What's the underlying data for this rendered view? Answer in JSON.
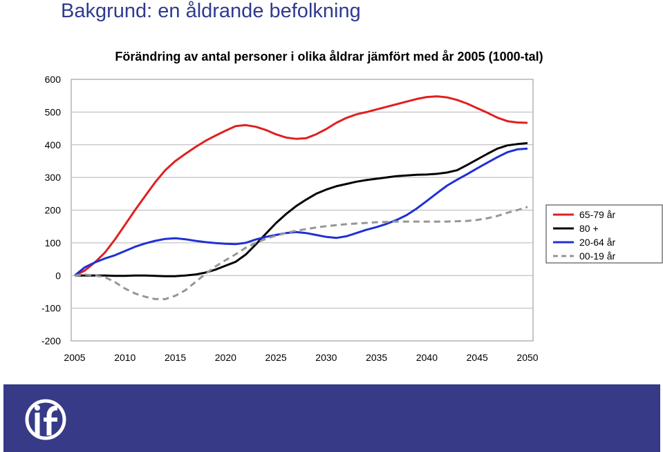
{
  "slide": {
    "title": "Bakgrund: en åldrande befolkning"
  },
  "colors": {
    "title": "#2f3a8f",
    "footer": "#363a87"
  },
  "logo": {
    "icon": "if-logo-icon"
  },
  "chart_data": {
    "type": "line",
    "title": "Förändring av antal personer i olika åldrar jämfört med år 2005 (1000-tal)",
    "xlabel": "",
    "ylabel": "",
    "xlim": [
      2005,
      2050
    ],
    "ylim": [
      -200,
      600
    ],
    "x_ticks": [
      2005,
      2010,
      2015,
      2020,
      2025,
      2030,
      2035,
      2040,
      2045,
      2050
    ],
    "y_ticks": [
      600,
      500,
      400,
      300,
      200,
      100,
      0,
      -100,
      -200
    ],
    "grid": "horizontal",
    "legend_position": "right",
    "series": [
      {
        "name": "65-79 år",
        "color": "#e01f1f",
        "dash": "solid",
        "x": [
          2005,
          2006,
          2007,
          2008,
          2009,
          2010,
          2011,
          2012,
          2013,
          2014,
          2015,
          2016,
          2017,
          2018,
          2019,
          2020,
          2021,
          2022,
          2023,
          2024,
          2025,
          2026,
          2027,
          2028,
          2029,
          2030,
          2031,
          2032,
          2033,
          2034,
          2035,
          2036,
          2037,
          2038,
          2039,
          2040,
          2041,
          2042,
          2043,
          2044,
          2045,
          2046,
          2047,
          2048,
          2049,
          2050
        ],
        "values": [
          0,
          15,
          40,
          70,
          110,
          155,
          200,
          243,
          285,
          322,
          350,
          372,
          393,
          412,
          428,
          443,
          457,
          460,
          455,
          445,
          432,
          422,
          418,
          420,
          432,
          448,
          467,
          482,
          493,
          500,
          508,
          516,
          524,
          532,
          540,
          546,
          548,
          545,
          537,
          526,
          512,
          498,
          483,
          472,
          468,
          467
        ]
      },
      {
        "name": "80 +",
        "color": "#000000",
        "dash": "solid",
        "x": [
          2005,
          2006,
          2007,
          2008,
          2009,
          2010,
          2011,
          2012,
          2013,
          2014,
          2015,
          2016,
          2017,
          2018,
          2019,
          2020,
          2021,
          2022,
          2023,
          2024,
          2025,
          2026,
          2027,
          2028,
          2029,
          2030,
          2031,
          2032,
          2033,
          2034,
          2035,
          2036,
          2037,
          2038,
          2039,
          2040,
          2041,
          2042,
          2043,
          2044,
          2045,
          2046,
          2047,
          2048,
          2049,
          2050
        ],
        "values": [
          0,
          0,
          0,
          0,
          -1,
          -1,
          0,
          0,
          -1,
          -2,
          -2,
          0,
          3,
          9,
          18,
          30,
          42,
          64,
          95,
          128,
          160,
          188,
          212,
          232,
          250,
          263,
          273,
          280,
          287,
          292,
          296,
          300,
          304,
          306,
          308,
          309,
          311,
          315,
          322,
          338,
          355,
          372,
          388,
          398,
          402,
          405
        ]
      },
      {
        "name": "20-64 år",
        "color": "#1f2fd6",
        "dash": "solid",
        "x": [
          2005,
          2006,
          2007,
          2008,
          2009,
          2010,
          2011,
          2012,
          2013,
          2014,
          2015,
          2016,
          2017,
          2018,
          2019,
          2020,
          2021,
          2022,
          2023,
          2024,
          2025,
          2026,
          2027,
          2028,
          2029,
          2030,
          2031,
          2032,
          2033,
          2034,
          2035,
          2036,
          2037,
          2038,
          2039,
          2040,
          2041,
          2042,
          2043,
          2044,
          2045,
          2046,
          2047,
          2048,
          2049,
          2050
        ],
        "values": [
          0,
          25,
          40,
          52,
          62,
          75,
          88,
          98,
          106,
          112,
          114,
          111,
          106,
          102,
          99,
          97,
          96,
          100,
          110,
          118,
          124,
          130,
          133,
          130,
          124,
          118,
          115,
          120,
          130,
          140,
          148,
          158,
          170,
          185,
          205,
          228,
          252,
          275,
          293,
          310,
          328,
          345,
          362,
          377,
          386,
          388
        ]
      },
      {
        "name": "00-19 år",
        "color": "#969696",
        "dash": "dashed",
        "x": [
          2005,
          2006,
          2007,
          2008,
          2009,
          2010,
          2011,
          2012,
          2013,
          2014,
          2015,
          2016,
          2017,
          2018,
          2019,
          2020,
          2021,
          2022,
          2023,
          2024,
          2025,
          2026,
          2027,
          2028,
          2029,
          2030,
          2031,
          2032,
          2033,
          2034,
          2035,
          2036,
          2037,
          2038,
          2039,
          2040,
          2041,
          2042,
          2043,
          2044,
          2045,
          2046,
          2047,
          2048,
          2049,
          2050
        ],
        "values": [
          0,
          3,
          0,
          -5,
          -20,
          -40,
          -55,
          -65,
          -72,
          -72,
          -62,
          -45,
          -20,
          5,
          28,
          47,
          65,
          85,
          100,
          112,
          122,
          130,
          137,
          142,
          147,
          151,
          154,
          157,
          159,
          161,
          163,
          164,
          165,
          165,
          165,
          165,
          165,
          165,
          166,
          167,
          170,
          175,
          182,
          192,
          200,
          210
        ]
      }
    ]
  }
}
